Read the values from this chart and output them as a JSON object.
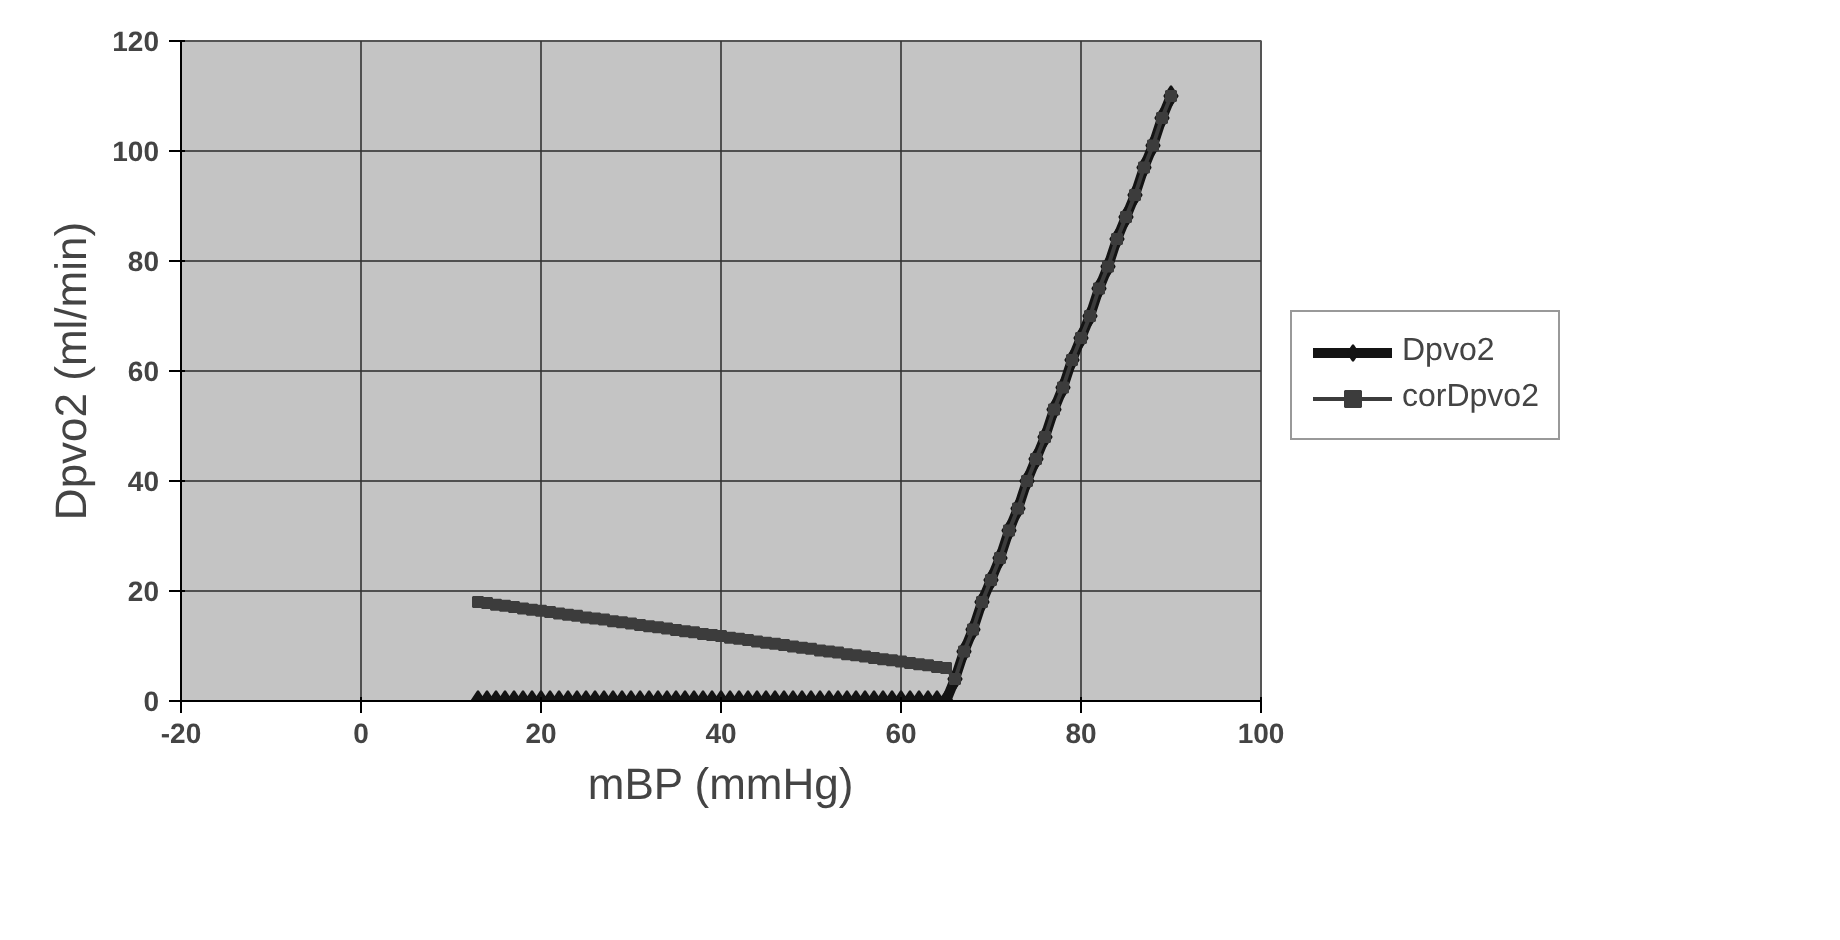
{
  "chart_data": {
    "type": "line",
    "xlabel": "mBP (mmHg)",
    "ylabel": "Dpvo2 (ml/min)",
    "x": [
      13,
      14,
      15,
      16,
      17,
      18,
      19,
      20,
      21,
      22,
      23,
      24,
      25,
      26,
      27,
      28,
      29,
      30,
      31,
      32,
      33,
      34,
      35,
      36,
      37,
      38,
      39,
      40,
      41,
      42,
      43,
      44,
      45,
      46,
      47,
      48,
      49,
      50,
      51,
      52,
      53,
      54,
      55,
      56,
      57,
      58,
      59,
      60,
      61,
      62,
      63,
      64,
      65,
      66,
      67,
      68,
      69,
      70,
      71,
      72,
      73,
      74,
      75,
      76,
      77,
      78,
      79,
      80,
      81,
      82,
      83,
      84,
      85,
      86,
      87,
      88,
      89,
      90
    ],
    "series": [
      {
        "name": "Dpvo2",
        "color": "#141414",
        "marker": "diamond",
        "values": [
          0,
          0,
          0,
          0,
          0,
          0,
          0,
          0,
          0,
          0,
          0,
          0,
          0,
          0,
          0,
          0,
          0,
          0,
          0,
          0,
          0,
          0,
          0,
          0,
          0,
          0,
          0,
          0,
          0,
          0,
          0,
          0,
          0,
          0,
          0,
          0,
          0,
          0,
          0,
          0,
          0,
          0,
          0,
          0,
          0,
          0,
          0,
          0,
          0,
          0,
          0,
          0,
          0,
          4,
          9,
          13,
          18,
          22,
          26,
          31,
          35,
          40,
          44,
          48,
          53,
          57,
          62,
          66,
          70,
          75,
          79,
          84,
          88,
          92,
          97,
          101,
          106,
          110
        ]
      },
      {
        "name": "corDpvo2",
        "color": "#3c3c3c",
        "marker": "square",
        "values": [
          18,
          17.8,
          17.5,
          17.3,
          17.1,
          16.8,
          16.6,
          16.4,
          16.2,
          15.9,
          15.7,
          15.5,
          15.2,
          15,
          14.8,
          14.5,
          14.3,
          14.1,
          13.8,
          13.6,
          13.4,
          13.2,
          12.9,
          12.7,
          12.5,
          12.2,
          12,
          11.8,
          11.5,
          11.3,
          11.1,
          10.8,
          10.6,
          10.4,
          10.2,
          9.9,
          9.7,
          9.5,
          9.2,
          9,
          8.8,
          8.5,
          8.3,
          8.1,
          7.8,
          7.6,
          7.4,
          7.2,
          6.9,
          6.7,
          6.5,
          6.2,
          6,
          4,
          9,
          13,
          18,
          22,
          26,
          31,
          35,
          40,
          44,
          48,
          53,
          57,
          62,
          66,
          70,
          75,
          79,
          84,
          88,
          92,
          97,
          101,
          106,
          110
        ]
      }
    ],
    "xlim": [
      -20,
      100
    ],
    "ylim": [
      0,
      120
    ],
    "xticks": [
      -20,
      0,
      20,
      40,
      60,
      80,
      100
    ],
    "yticks": [
      0,
      20,
      40,
      60,
      80,
      100,
      120
    ],
    "grid": true,
    "legend": "right",
    "line_style": "solid"
  }
}
